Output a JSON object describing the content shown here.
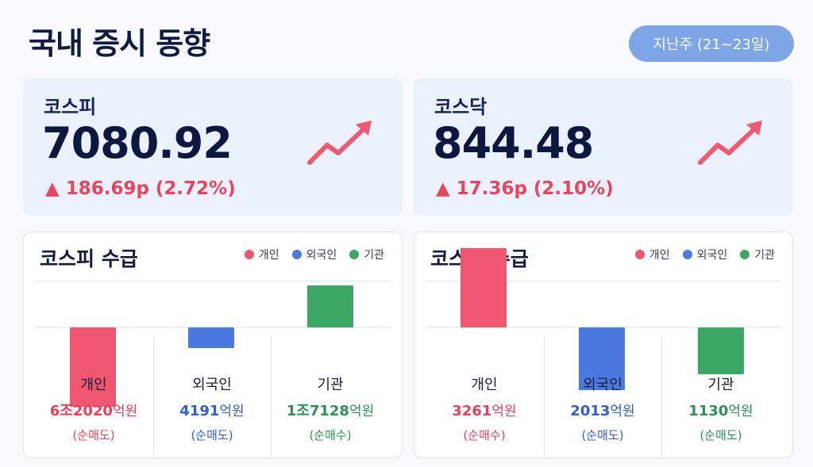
{
  "header": {
    "title": "국내 증시 동향",
    "period": "지난주 (21~23일)"
  },
  "colors": {
    "individual": "#f0566f",
    "foreign": "#4a7ae0",
    "institution": "#3aa864",
    "up": "#e8455e"
  },
  "indices": [
    {
      "name": "코스피",
      "value": "7080.92",
      "change": "▲ 186.69p (2.72%)",
      "trend_icon": "trend-up-arrow"
    },
    {
      "name": "코스닥",
      "value": "844.48",
      "change": "▲ 17.36p (2.10%)",
      "trend_icon": "trend-up-arrow"
    }
  ],
  "legend": [
    "개인",
    "외국인",
    "기관"
  ],
  "flows": [
    {
      "title": "코스피 수급",
      "investors": [
        {
          "label": "개인",
          "amount": "6조2020",
          "unit": "억원",
          "note": "(순매도)",
          "value_eok": -62020
        },
        {
          "label": "외국인",
          "amount": "4191",
          "unit": "억원",
          "note": "(순매도)",
          "value_eok": -4191
        },
        {
          "label": "기관",
          "amount": "1조7128",
          "unit": "억원",
          "note": "(순매수)",
          "value_eok": 17128
        }
      ]
    },
    {
      "title": "코스닥 수급",
      "investors": [
        {
          "label": "개인",
          "amount": "3261",
          "unit": "억원",
          "note": "(순매수)",
          "value_eok": 3261
        },
        {
          "label": "외국인",
          "amount": "2013",
          "unit": "억원",
          "note": "(순매도)",
          "value_eok": -2013
        },
        {
          "label": "기관",
          "amount": "1130",
          "unit": "억원",
          "note": "(순매도)",
          "value_eok": -1130
        }
      ]
    }
  ]
}
